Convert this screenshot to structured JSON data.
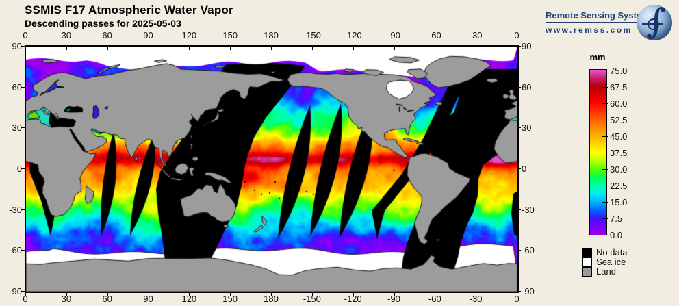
{
  "header": {
    "title": "SSMIS F17 Atmospheric Water Vapor",
    "subtitle": "Descending passes for 2025-05-03"
  },
  "logo": {
    "name": "Remote Sensing Systems",
    "url_text": "www.remss.com",
    "brand_color": "#1d3f7a",
    "icon": "earth-globe-integral"
  },
  "map": {
    "lon_tick_labels": [
      "0",
      "30",
      "60",
      "90",
      "120",
      "150",
      "180",
      "-150",
      "-120",
      "-90",
      "-60",
      "-30",
      "0"
    ],
    "lat_tick_labels": [
      "90",
      "60",
      "30",
      "0",
      "-30",
      "-60",
      "-90"
    ],
    "lon_range_deg": [
      0,
      360
    ],
    "lat_range_deg": [
      90,
      -90
    ]
  },
  "colorbar": {
    "units_label": "mm",
    "tick_labels": [
      "75.0",
      "67.5",
      "60.0",
      "52.5",
      "45.0",
      "37.5",
      "30.0",
      "22.5",
      "15.0",
      "7.5",
      "0.0"
    ],
    "min_value": 0.0,
    "max_value": 75.0,
    "stops": [
      [
        0,
        "#a000e8"
      ],
      [
        3.8,
        "#7800ff"
      ],
      [
        7.5,
        "#3c14ff"
      ],
      [
        11,
        "#0064ff"
      ],
      [
        15,
        "#00b4ff"
      ],
      [
        18.8,
        "#00eeee"
      ],
      [
        22.5,
        "#00ffaa"
      ],
      [
        26,
        "#00ff55"
      ],
      [
        30,
        "#5aff00"
      ],
      [
        33.8,
        "#c0ff00"
      ],
      [
        37.5,
        "#ffff00"
      ],
      [
        41,
        "#ffd800"
      ],
      [
        45,
        "#ffb000"
      ],
      [
        48.8,
        "#ff8800"
      ],
      [
        52.5,
        "#ff6000"
      ],
      [
        56,
        "#ff3400"
      ],
      [
        60,
        "#ff0000"
      ],
      [
        63.8,
        "#dc0000"
      ],
      [
        67.5,
        "#b40008"
      ],
      [
        71,
        "#c81e64"
      ],
      [
        75,
        "#f050d8"
      ]
    ]
  },
  "legend": {
    "items": [
      {
        "label": "No data",
        "color": "#000000"
      },
      {
        "label": "Sea ice",
        "color": "#ffffff"
      },
      {
        "label": "Land",
        "color": "#9c9c9c"
      }
    ]
  },
  "colors": {
    "background": "#f1ede0",
    "land": "#9c9c9c",
    "coastline": "#141414",
    "no_data": "#000000",
    "sea_ice": "#ffffff",
    "frame": "#000000"
  }
}
